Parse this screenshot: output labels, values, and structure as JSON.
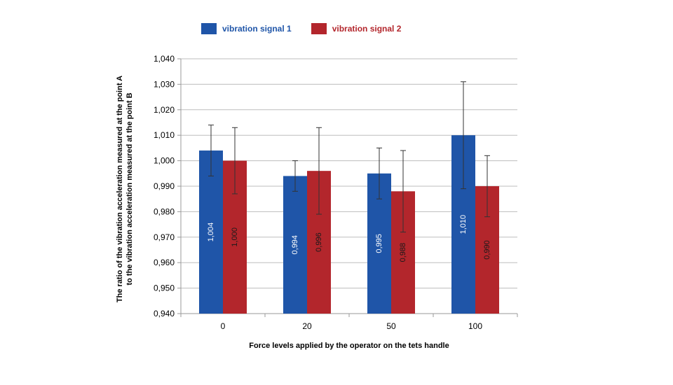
{
  "chart_data": {
    "type": "bar",
    "categories": [
      "0",
      "20",
      "50",
      "100"
    ],
    "series": [
      {
        "name": "vibration signal 1",
        "color": "#1f55a8",
        "values": [
          1.004,
          0.994,
          0.995,
          1.01
        ],
        "value_labels": [
          "1,004",
          "0,994",
          "0,995",
          "1,010"
        ],
        "error_low": [
          0.994,
          0.988,
          0.985,
          0.989
        ],
        "error_high": [
          1.014,
          1.0,
          1.005,
          1.031
        ]
      },
      {
        "name": "vibration signal 2",
        "color": "#b3262c",
        "values": [
          1.0,
          0.996,
          0.988,
          0.99
        ],
        "value_labels": [
          "1,000",
          "0,996",
          "0,988",
          "0,990"
        ],
        "error_low": [
          0.987,
          0.979,
          0.972,
          0.978
        ],
        "error_high": [
          1.013,
          1.013,
          1.004,
          1.002
        ]
      }
    ],
    "ylim": [
      0.94,
      1.04
    ],
    "yticks": [
      0.94,
      0.95,
      0.96,
      0.97,
      0.98,
      0.99,
      1.0,
      1.01,
      1.02,
      1.03,
      1.04
    ],
    "ytick_labels": [
      "0,940",
      "0,950",
      "0,960",
      "0,970",
      "0,980",
      "0,990",
      "1,000",
      "1,010",
      "1,020",
      "1,030",
      "1,040"
    ],
    "xlabel": "Force levels applied by the operator on the tets handle",
    "ylabel_line1": "The ratio of the vibration acceleration measured at the point A",
    "ylabel_line2": "to the vibration acceleration measured at the point B",
    "grid": true,
    "legend_position": "top"
  }
}
